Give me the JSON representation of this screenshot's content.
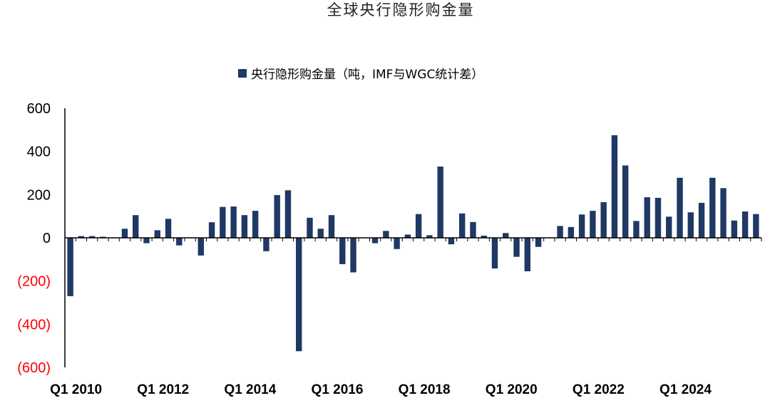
{
  "colors": {
    "bar": "#1f3864",
    "negative_label": "#ff0000",
    "axis": "#000000"
  },
  "chart_data": {
    "type": "bar",
    "title": "全球央行隐形购金量",
    "legend": {
      "label": "央行隐形购金量（吨，IMF与WGC统计差）",
      "placement": "top-center"
    },
    "ylim": [
      -600,
      600
    ],
    "y_ticks": [
      600,
      400,
      200,
      0,
      -200,
      -400,
      -600
    ],
    "y_tick_labels": [
      "600",
      "400",
      "200",
      "0",
      "(200)",
      "(400)",
      "(600)"
    ],
    "x_tick_labels": [
      "Q1 2010",
      "Q1 2012",
      "Q1 2014",
      "Q1 2016",
      "Q1 2018",
      "Q1 2020",
      "Q1 2022",
      "Q1 2024"
    ],
    "grid": false,
    "categories": [
      "Q1 2010",
      "Q2 2010",
      "Q3 2010",
      "Q4 2010",
      "Q1 2011",
      "Q2 2011",
      "Q3 2011",
      "Q4 2011",
      "Q1 2012",
      "Q2 2012",
      "Q3 2012",
      "Q4 2012",
      "Q1 2013",
      "Q2 2013",
      "Q3 2013",
      "Q4 2013",
      "Q1 2014",
      "Q2 2014",
      "Q3 2014",
      "Q4 2014",
      "Q1 2015",
      "Q2 2015",
      "Q3 2015",
      "Q4 2015",
      "Q1 2016",
      "Q2 2016",
      "Q3 2016",
      "Q4 2016",
      "Q1 2017",
      "Q2 2017",
      "Q3 2017",
      "Q4 2017",
      "Q1 2018",
      "Q2 2018",
      "Q3 2018",
      "Q4 2018",
      "Q1 2019",
      "Q2 2019",
      "Q3 2019",
      "Q4 2019",
      "Q1 2020",
      "Q2 2020",
      "Q3 2020",
      "Q4 2020",
      "Q1 2021",
      "Q2 2021",
      "Q3 2021",
      "Q4 2021",
      "Q1 2022",
      "Q2 2022",
      "Q3 2022",
      "Q4 2022",
      "Q1 2023",
      "Q2 2023",
      "Q3 2023",
      "Q4 2023",
      "Q1 2024",
      "Q2 2024",
      "Q3 2024",
      "Q4 2024",
      "Q1 2025",
      "Q2 2025",
      "Q3 2025",
      "Q4 2025"
    ],
    "series": [
      {
        "name": "央行隐形购金量（吨，IMF与WGC统计差）",
        "values": [
          -270,
          8,
          8,
          5,
          2,
          42,
          105,
          -25,
          35,
          88,
          -35,
          2,
          -82,
          72,
          143,
          145,
          105,
          125,
          -62,
          198,
          220,
          -525,
          93,
          42,
          105,
          -122,
          -160,
          2,
          -25,
          32,
          -52,
          15,
          110,
          12,
          330,
          -30,
          113,
          73,
          10,
          -142,
          22,
          -88,
          -155,
          -42,
          2,
          55,
          50,
          108,
          125,
          165,
          475,
          335,
          78,
          188,
          185,
          98,
          278,
          118,
          162,
          278,
          230,
          80,
          122,
          110
        ]
      }
    ]
  }
}
